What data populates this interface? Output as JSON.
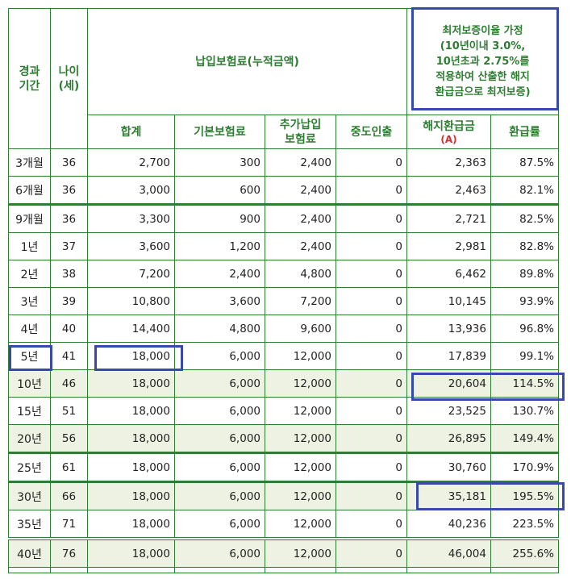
{
  "header": {
    "elapsed_period": "경과\n기간",
    "age": "나이\n(세)",
    "premium_group": "납입보험료(누적금액)",
    "assumption": "최저보증이율 가정\n(10년이내 3.0%,\n10년초과 2.75%를\n적용하여 산출한 해지\n환급금으로 최저보증)",
    "total": "합계",
    "base_premium": "기본보험료",
    "additional_premium": "추가납입\n보험료",
    "withdrawal": "중도인출",
    "surrender_value": "해지환급금",
    "surrender_mark": "(A)",
    "refund_rate": "환급률"
  },
  "rows": [
    {
      "period": "3개월",
      "age": "36",
      "total": "2,700",
      "base": "300",
      "additional": "2,400",
      "withdrawal": "0",
      "surrender": "2,363",
      "rate": "87.5%"
    },
    {
      "period": "6개월",
      "age": "36",
      "total": "3,000",
      "base": "600",
      "additional": "2,400",
      "withdrawal": "0",
      "surrender": "2,463",
      "rate": "82.1%"
    },
    {
      "period": "9개월",
      "age": "36",
      "total": "3,300",
      "base": "900",
      "additional": "2,400",
      "withdrawal": "0",
      "surrender": "2,721",
      "rate": "82.5%"
    },
    {
      "period": "1년",
      "age": "37",
      "total": "3,600",
      "base": "1,200",
      "additional": "2,400",
      "withdrawal": "0",
      "surrender": "2,981",
      "rate": "82.8%"
    },
    {
      "period": "2년",
      "age": "38",
      "total": "7,200",
      "base": "2,400",
      "additional": "4,800",
      "withdrawal": "0",
      "surrender": "6,462",
      "rate": "89.8%"
    },
    {
      "period": "3년",
      "age": "39",
      "total": "10,800",
      "base": "3,600",
      "additional": "7,200",
      "withdrawal": "0",
      "surrender": "10,145",
      "rate": "93.9%"
    },
    {
      "period": "4년",
      "age": "40",
      "total": "14,400",
      "base": "4,800",
      "additional": "9,600",
      "withdrawal": "0",
      "surrender": "13,936",
      "rate": "96.8%"
    },
    {
      "period": "5년",
      "age": "41",
      "total": "18,000",
      "base": "6,000",
      "additional": "12,000",
      "withdrawal": "0",
      "surrender": "17,839",
      "rate": "99.1%"
    },
    {
      "period": "10년",
      "age": "46",
      "total": "18,000",
      "base": "6,000",
      "additional": "12,000",
      "withdrawal": "0",
      "surrender": "20,604",
      "rate": "114.5%"
    },
    {
      "period": "15년",
      "age": "51",
      "total": "18,000",
      "base": "6,000",
      "additional": "12,000",
      "withdrawal": "0",
      "surrender": "23,525",
      "rate": "130.7%"
    },
    {
      "period": "20년",
      "age": "56",
      "total": "18,000",
      "base": "6,000",
      "additional": "12,000",
      "withdrawal": "0",
      "surrender": "26,895",
      "rate": "149.4%"
    },
    {
      "period": "25년",
      "age": "61",
      "total": "18,000",
      "base": "6,000",
      "additional": "12,000",
      "withdrawal": "0",
      "surrender": "30,760",
      "rate": "170.9%"
    },
    {
      "period": "30년",
      "age": "66",
      "total": "18,000",
      "base": "6,000",
      "additional": "12,000",
      "withdrawal": "0",
      "surrender": "35,181",
      "rate": "195.5%"
    },
    {
      "period": "35년",
      "age": "71",
      "total": "18,000",
      "base": "6,000",
      "additional": "12,000",
      "withdrawal": "0",
      "surrender": "40,236",
      "rate": "223.5%"
    },
    {
      "period": "40년",
      "age": "76",
      "total": "18,000",
      "base": "6,000",
      "additional": "12,000",
      "withdrawal": "0",
      "surrender": "46,004",
      "rate": "255.6%"
    }
  ],
  "colors": {
    "border": "#2e7d32",
    "shade": "#eef2e3",
    "highlight": "#3949ab",
    "mark": "#d32f2f"
  }
}
